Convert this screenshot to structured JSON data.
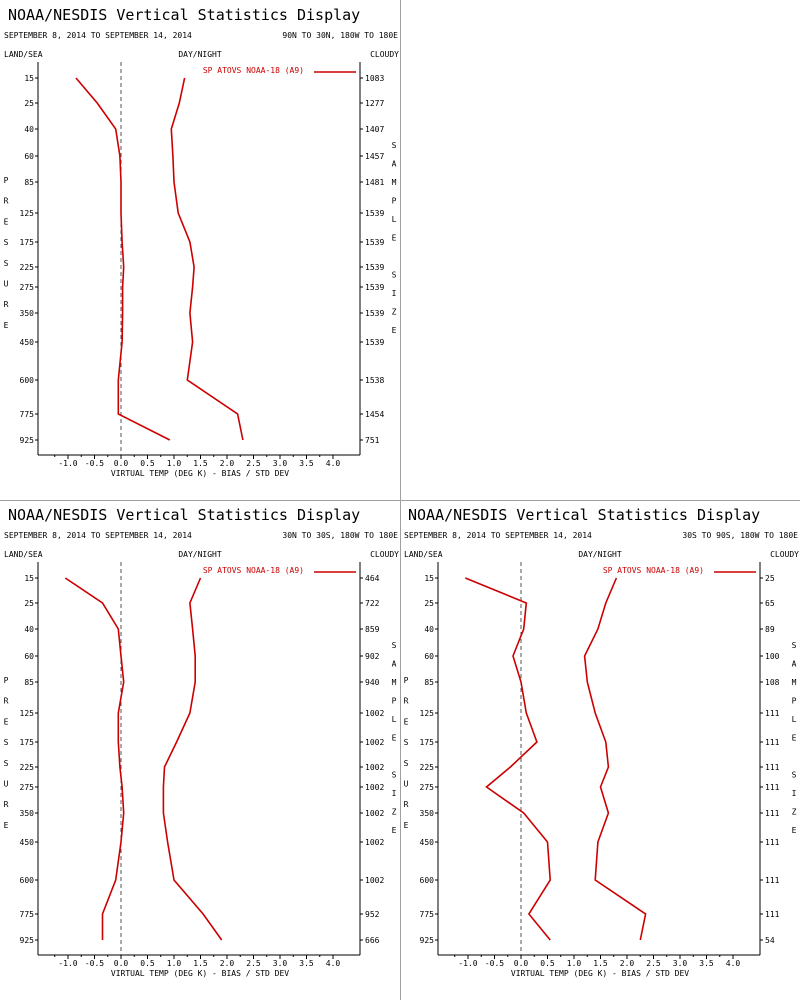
{
  "chart_data": [
    {
      "type": "line",
      "title": "NOAA/NESDIS Vertical Statistics Display",
      "date_range": "SEPTEMBER 8, 2014 TO SEPTEMBER 14, 2014",
      "region": "90N TO 30N, 180W TO 180E",
      "top_left_label": "LAND/SEA",
      "top_center_label": "DAY/NIGHT",
      "top_right_label": "CLOUDY",
      "ylabel_left": "PRESSURE",
      "ylabel_right": "SAMPLE SIZE",
      "xlabel": "VIRTUAL TEMP (DEG K) - BIAS / STD DEV",
      "xlim": [
        -1.5,
        4.0
      ],
      "xticks": [
        "-1.0",
        "-0.5",
        "0.0",
        "0.5",
        "1.0",
        "1.5",
        "2.0",
        "2.5",
        "3.0",
        "3.5",
        "4.0"
      ],
      "legend": "SP ATOVS NOAA-18 (A9)",
      "pressure_levels": [
        "15",
        "25",
        "40",
        "60",
        "85",
        "125",
        "175",
        "225",
        "275",
        "350",
        "450",
        "600",
        "775",
        "925"
      ],
      "sample_size": [
        "1083",
        "1277",
        "1407",
        "1457",
        "1481",
        "1539",
        "1539",
        "1539",
        "1539",
        "1539",
        "1539",
        "1538",
        "1454",
        "751"
      ],
      "series": [
        {
          "values": [
            -0.85,
            -0.45,
            -0.1,
            -0.02,
            0.0,
            0.0,
            0.02,
            0.05,
            0.03,
            0.03,
            0.02,
            -0.05,
            -0.05,
            0.92
          ]
        },
        {
          "values": [
            1.2,
            1.1,
            0.95,
            0.98,
            1.0,
            1.08,
            1.3,
            1.38,
            1.35,
            1.3,
            1.35,
            1.25,
            2.2,
            2.3
          ]
        }
      ]
    },
    {
      "type": "line",
      "title": "NOAA/NESDIS Vertical Statistics Display",
      "date_range": "SEPTEMBER 8, 2014 TO SEPTEMBER 14, 2014",
      "region": "30N TO 30S, 180W TO 180E",
      "top_left_label": "LAND/SEA",
      "top_center_label": "DAY/NIGHT",
      "top_right_label": "CLOUDY",
      "ylabel_left": "PRESSURE",
      "ylabel_right": "SAMPLE SIZE",
      "xlabel": "VIRTUAL TEMP (DEG K) - BIAS / STD DEV",
      "xlim": [
        -1.5,
        4.0
      ],
      "xticks": [
        "-1.0",
        "-0.5",
        "0.0",
        "0.5",
        "1.0",
        "1.5",
        "2.0",
        "2.5",
        "3.0",
        "3.5",
        "4.0"
      ],
      "legend": "SP ATOVS NOAA-18 (A9)",
      "pressure_levels": [
        "15",
        "25",
        "40",
        "60",
        "85",
        "125",
        "175",
        "225",
        "275",
        "350",
        "450",
        "600",
        "775",
        "925"
      ],
      "sample_size": [
        "464",
        "722",
        "859",
        "902",
        "940",
        "1002",
        "1002",
        "1002",
        "1002",
        "1002",
        "1002",
        "1002",
        "952",
        "666"
      ],
      "series": [
        {
          "values": [
            -1.05,
            -0.35,
            -0.05,
            0.0,
            0.05,
            -0.05,
            -0.05,
            -0.02,
            0.02,
            0.05,
            0.0,
            -0.1,
            -0.35,
            -0.35
          ]
        },
        {
          "values": [
            1.5,
            1.3,
            1.35,
            1.4,
            1.4,
            1.3,
            1.05,
            0.82,
            0.8,
            0.8,
            0.88,
            1.0,
            1.55,
            1.9
          ]
        }
      ]
    },
    {
      "type": "line",
      "title": "NOAA/NESDIS Vertical Statistics Display",
      "date_range": "SEPTEMBER 8, 2014 TO SEPTEMBER 14, 2014",
      "region": "30S TO 90S, 180W TO 180E",
      "top_left_label": "LAND/SEA",
      "top_center_label": "DAY/NIGHT",
      "top_right_label": "CLOUDY",
      "ylabel_left": "PRESSURE",
      "ylabel_right": "SAMPLE SIZE",
      "xlabel": "VIRTUAL TEMP (DEG K) - BIAS / STD DEV",
      "xlim": [
        -1.5,
        4.0
      ],
      "xticks": [
        "-1.0",
        "-0.5",
        "0.0",
        "0.5",
        "1.0",
        "1.5",
        "2.0",
        "2.5",
        "3.0",
        "3.5",
        "4.0"
      ],
      "legend": "SP ATOVS NOAA-18 (A9)",
      "pressure_levels": [
        "15",
        "25",
        "40",
        "60",
        "85",
        "125",
        "175",
        "225",
        "275",
        "350",
        "450",
        "600",
        "775",
        "925"
      ],
      "sample_size": [
        "25",
        "65",
        "89",
        "100",
        "108",
        "111",
        "111",
        "111",
        "111",
        "111",
        "111",
        "111",
        "111",
        "54"
      ],
      "series": [
        {
          "values": [
            -1.05,
            0.1,
            0.05,
            -0.15,
            0.0,
            0.1,
            0.3,
            -0.2,
            -0.65,
            0.05,
            0.5,
            0.55,
            0.15,
            0.55
          ]
        },
        {
          "values": [
            1.8,
            1.6,
            1.45,
            1.2,
            1.25,
            1.4,
            1.6,
            1.65,
            1.5,
            1.65,
            1.45,
            1.4,
            2.35,
            2.25
          ]
        }
      ]
    }
  ],
  "colors": {
    "series": "#cc0000",
    "axis": "#000000",
    "zero_line": "#555555",
    "divider": "#a0a0a0"
  }
}
